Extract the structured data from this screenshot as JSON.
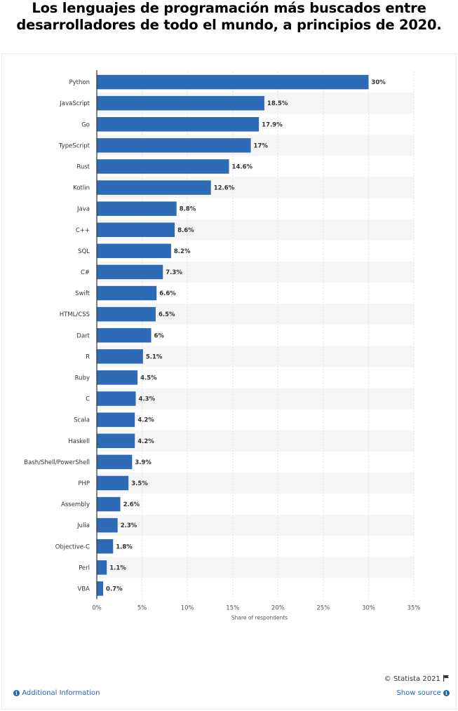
{
  "title": {
    "line1": "Los lenguajes de programación más buscados entre",
    "line2": "desarrolladores de todo el mundo, a principios de 2020."
  },
  "footer": {
    "credit": "© Statista 2021",
    "additional_info": "Additional Information",
    "show_source": "Show source",
    "info_icon_glyph": "i"
  },
  "colors": {
    "bar": "#2e6bb6",
    "band": "#f5f5f5",
    "link": "#1d65b5"
  },
  "chart_data": {
    "type": "bar",
    "orientation": "horizontal",
    "categories": [
      "Python",
      "JavaScript",
      "Go",
      "TypeScript",
      "Rust",
      "Kotlin",
      "Java",
      "C++",
      "SQL",
      "C#",
      "Swift",
      "HTML/CSS",
      "Dart",
      "R",
      "Ruby",
      "C",
      "Scala",
      "Haskell",
      "Bash/Shell/PowerShell",
      "PHP",
      "Assembly",
      "Julia",
      "Objective-C",
      "Perl",
      "VBA"
    ],
    "values": [
      30,
      18.5,
      17.9,
      17,
      14.6,
      12.6,
      8.8,
      8.6,
      8.2,
      7.3,
      6.6,
      6.5,
      6,
      5.1,
      4.5,
      4.3,
      4.2,
      4.2,
      3.9,
      3.5,
      2.6,
      2.3,
      1.8,
      1.1,
      0.7
    ],
    "data_labels": [
      "30%",
      "18.5%",
      "17.9%",
      "17%",
      "14.6%",
      "12.6%",
      "8.8%",
      "8.6%",
      "8.2%",
      "7.3%",
      "6.6%",
      "6.5%",
      "6%",
      "5.1%",
      "4.5%",
      "4.3%",
      "4.2%",
      "4.2%",
      "3.9%",
      "3.5%",
      "2.6%",
      "2.3%",
      "1.8%",
      "1.1%",
      "0.7%"
    ],
    "xlabel": "Share of respondents",
    "ylabel": "",
    "xlim": [
      0,
      35
    ],
    "xticks": [
      0,
      5,
      10,
      15,
      20,
      25,
      30,
      35
    ],
    "xtick_labels": [
      "0%",
      "5%",
      "10%",
      "15%",
      "20%",
      "25%",
      "30%",
      "35%"
    ],
    "grid": true
  }
}
